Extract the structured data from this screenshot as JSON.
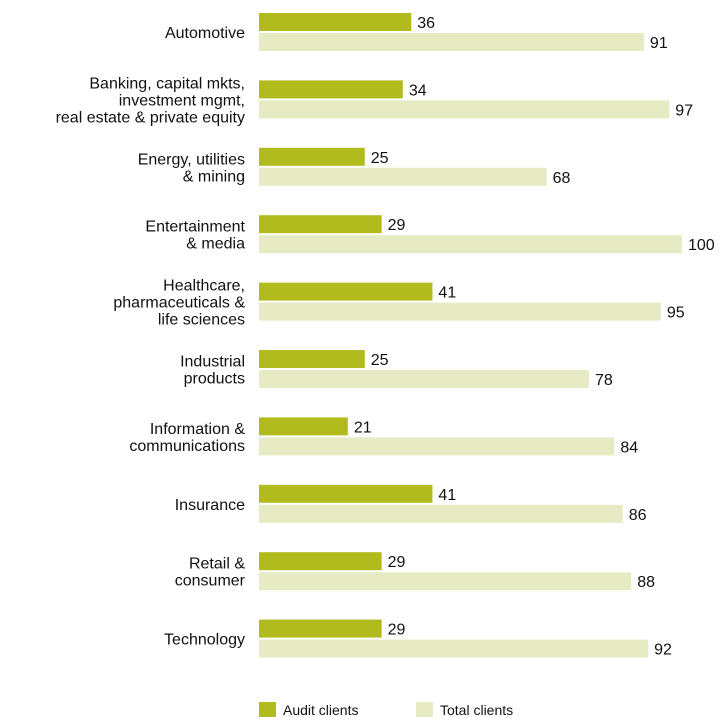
{
  "chart_data": {
    "type": "bar",
    "orientation": "horizontal",
    "categories": [
      [
        "Automotive"
      ],
      [
        "Banking, capital mkts,",
        "investment mgmt,",
        "real estate & private equity"
      ],
      [
        "Energy, utilities",
        "& mining"
      ],
      [
        "Entertainment",
        "& media"
      ],
      [
        "Healthcare,",
        "pharmaceuticals &",
        "life sciences"
      ],
      [
        "Industrial",
        "products"
      ],
      [
        "Information &",
        "communications"
      ],
      [
        "Insurance"
      ],
      [
        "Retail &",
        "consumer"
      ],
      [
        "Technology"
      ]
    ],
    "series": [
      {
        "name": "Audit clients",
        "color": "#b2bb1e",
        "values": [
          36,
          34,
          25,
          29,
          41,
          25,
          21,
          41,
          29,
          29
        ]
      },
      {
        "name": "Total clients",
        "color": "#e6ebc3",
        "values": [
          91,
          97,
          68,
          100,
          95,
          78,
          84,
          86,
          88,
          92
        ]
      }
    ],
    "xlim": [
      0,
      100
    ],
    "grid": false,
    "legend_position": "bottom",
    "data_labels": true
  }
}
